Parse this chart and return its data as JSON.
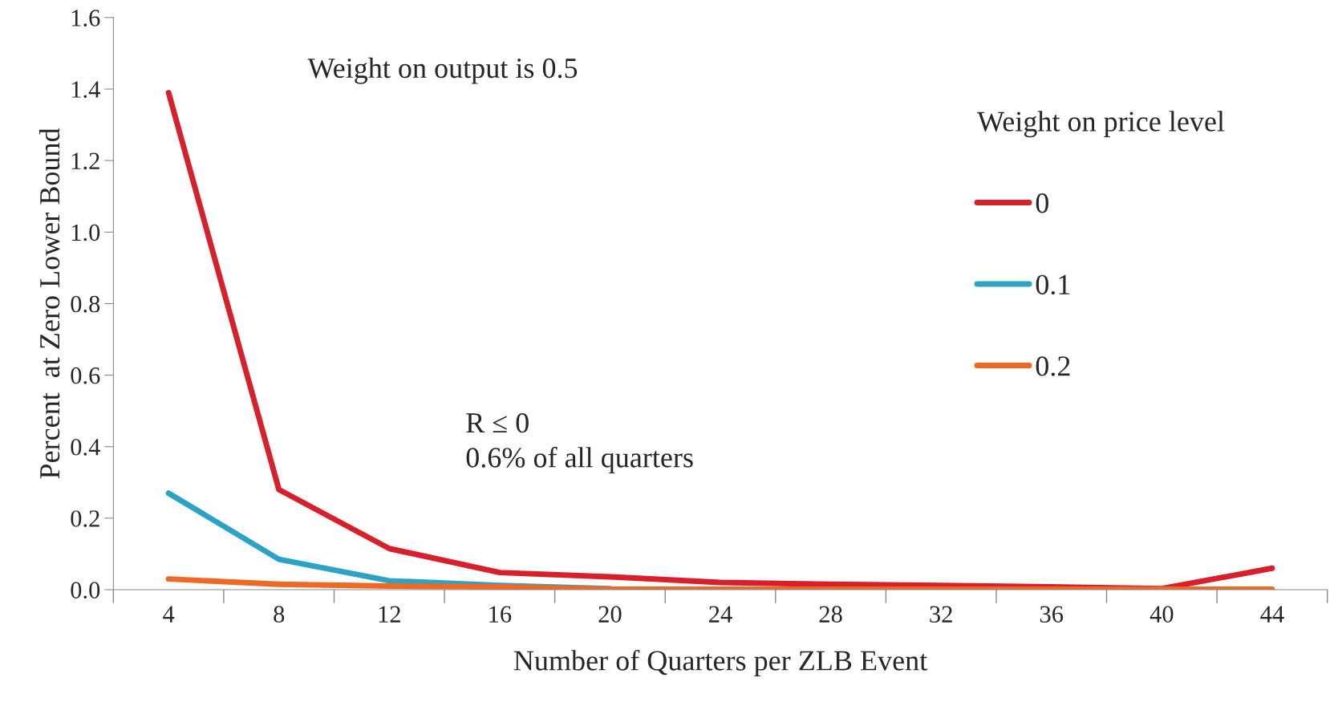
{
  "chart_data": {
    "type": "line",
    "xlabel": "Number of Quarters per ZLB Event",
    "ylabel": "Percent  at Zero Lower Bound",
    "legend_title": "Weight on price level",
    "categories": [
      "4",
      "8",
      "12",
      "16",
      "20",
      "24",
      "28",
      "32",
      "36",
      "40",
      "44"
    ],
    "series": [
      {
        "name": "0",
        "color": "#d7202b",
        "values": [
          1.39,
          0.28,
          0.115,
          0.048,
          0.036,
          0.02,
          0.015,
          0.012,
          0.008,
          0.003,
          0.06
        ]
      },
      {
        "name": "0.1",
        "color": "#2ba3c4",
        "values": [
          0.27,
          0.085,
          0.025,
          0.012,
          0.003,
          null,
          null,
          null,
          null,
          null,
          null
        ]
      },
      {
        "name": "0.2",
        "color": "#ee6a24",
        "values": [
          0.03,
          0.015,
          0.01,
          0.008,
          0.001,
          0.001,
          0.001,
          0.001,
          0.001,
          0.001,
          0.001
        ]
      }
    ],
    "ylim": [
      0,
      1.6
    ],
    "yticks": [
      {
        "value": 0,
        "label": "0.0"
      },
      0.2,
      0.4,
      0.6,
      0.8,
      {
        "value": 1.0,
        "label": "1.0"
      },
      1.2,
      1.4,
      1.6
    ],
    "annotations": [
      "Weight on output is 0.5",
      "R ≤ 0\n0.6% of all quarters"
    ],
    "legend": "right",
    "grid": false,
    "marker": "none",
    "line_style": "solid"
  }
}
